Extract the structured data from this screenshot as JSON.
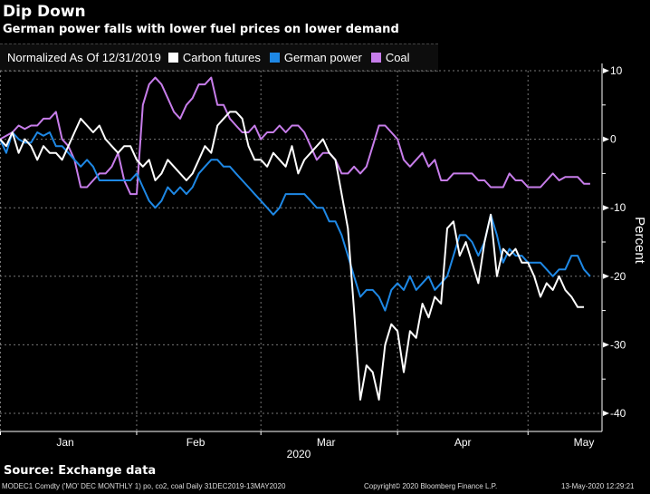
{
  "header": {
    "title": "Dip Down",
    "subtitle": "German power falls with lower fuel prices on lower demand"
  },
  "legend": {
    "normalized_label": "Normalized As Of 12/31/2019",
    "items": [
      {
        "label": "Carbon futures",
        "color": "#ffffff"
      },
      {
        "label": "German power",
        "color": "#1e88e5"
      },
      {
        "label": "Coal",
        "color": "#c77dea"
      }
    ]
  },
  "footer": {
    "source": "Source: Exchange data",
    "ticker_info": "MODEC1 Comdty ('MO' DEC MONTHLY 1) po, co2, coal  Daily 31DEC2019-13MAY2020",
    "copyright": "Copyright© 2020 Bloomberg Finance L.P.",
    "timestamp": "13-May-2020 12:29:21"
  },
  "chart_data": {
    "type": "line",
    "title": "Dip Down",
    "subtitle": "German power falls with lower fuel prices on lower demand",
    "xlabel": "2020",
    "ylabel": "Percent",
    "x_unit": "trading day index from 31-Dec-2019",
    "xlim": [
      0,
      95
    ],
    "ylim": [
      -42,
      12
    ],
    "yticks": [
      10,
      0,
      -10,
      -20,
      -30,
      -40
    ],
    "ytick_labels": [
      "10",
      "0",
      "-10",
      "-20",
      "-30",
      "-40"
    ],
    "xticks": [
      {
        "label": "Jan",
        "at": 10.5
      },
      {
        "label": "Feb",
        "at": 31.5
      },
      {
        "label": "Mar",
        "at": 52.5
      },
      {
        "label": "Apr",
        "at": 74.5
      },
      {
        "label": "May",
        "at": 94
      }
    ],
    "month_boundaries": [
      0,
      22,
      42,
      64,
      85
    ],
    "year_label": "2020",
    "grid": true,
    "legend_position": "top-left",
    "axis_position": "right",
    "series": [
      {
        "name": "Carbon futures",
        "color": "#ffffff",
        "values": [
          0,
          -1,
          1,
          -2,
          0,
          -1,
          -3,
          -1,
          -2,
          -2,
          -3,
          -1,
          1,
          3,
          2,
          1,
          2,
          0,
          -1,
          -2,
          -1,
          -1,
          -3,
          -4,
          -3,
          -6,
          -5,
          -3,
          -4,
          -5,
          -6,
          -5,
          -3,
          -1,
          -2,
          2,
          3,
          4,
          4,
          3,
          -1,
          -3,
          -3,
          -4,
          -2,
          -3,
          -4,
          -1,
          -5,
          -3,
          -2,
          -1,
          0,
          -2,
          -3,
          -8,
          -13,
          -25,
          -38,
          -33,
          -34,
          -38,
          -30,
          -27,
          -28,
          -34,
          -28,
          -29,
          -24,
          -26,
          -23,
          -24,
          -13,
          -12,
          -17,
          -15,
          -18,
          -21,
          -15,
          -11,
          -20,
          -16,
          -17,
          -16,
          -18,
          -18,
          -20,
          -23,
          -21,
          -22,
          -20,
          -22,
          -23,
          -24.5,
          -24.5
        ]
      },
      {
        "name": "German power",
        "color": "#1e88e5",
        "values": [
          0,
          -2,
          1,
          0,
          -0.5,
          -0.5,
          1,
          0.5,
          1,
          -1,
          -1,
          -2,
          -3,
          -4,
          -3,
          -4,
          -6,
          -6,
          -6,
          -6,
          -6,
          -6,
          -5,
          -7,
          -9,
          -10,
          -9,
          -7,
          -8,
          -7,
          -8,
          -7,
          -5,
          -4,
          -3,
          -3,
          -4,
          -4,
          -5,
          -6,
          -7,
          -8,
          -9,
          -10,
          -11,
          -10,
          -8,
          -8,
          -8,
          -8,
          -9,
          -10,
          -10,
          -12,
          -12,
          -14,
          -17,
          -20,
          -23,
          -22,
          -22,
          -23,
          -25,
          -22,
          -21,
          -22,
          -20,
          -22,
          -21,
          -20,
          -22,
          -21,
          -20,
          -17,
          -14,
          -14,
          -15,
          -17,
          -15,
          -11,
          -14,
          -18,
          -16,
          -17,
          -17,
          -18,
          -18,
          -18,
          -19,
          -20,
          -19,
          -19,
          -17,
          -17,
          -19,
          -20
        ]
      },
      {
        "name": "Coal",
        "color": "#c77dea",
        "values": [
          0,
          0.5,
          1,
          2,
          1.5,
          2,
          2,
          3,
          3,
          4,
          0,
          -1,
          -3,
          -7,
          -7,
          -6,
          -5,
          -5,
          -4,
          -2,
          -6,
          -8,
          -8,
          5,
          8,
          9,
          8,
          6,
          4,
          3,
          5,
          6,
          8,
          8,
          9,
          5,
          5,
          3,
          2,
          1,
          1,
          2,
          0,
          1,
          1,
          2,
          1,
          2,
          2,
          1,
          -1,
          -3,
          -2,
          -2,
          -3,
          -5,
          -5,
          -4,
          -5,
          -4,
          -1,
          2,
          2,
          1,
          0,
          -3,
          -4,
          -3,
          -2,
          -4,
          -3,
          -6,
          -6,
          -5,
          -5,
          -5,
          -5,
          -6,
          -6,
          -7,
          -7,
          -7,
          -5,
          -6,
          -6,
          -7,
          -7,
          -7,
          -6,
          -5,
          -6,
          -5.5,
          -5.5,
          -5.5,
          -6.5,
          -6.5
        ]
      }
    ]
  }
}
